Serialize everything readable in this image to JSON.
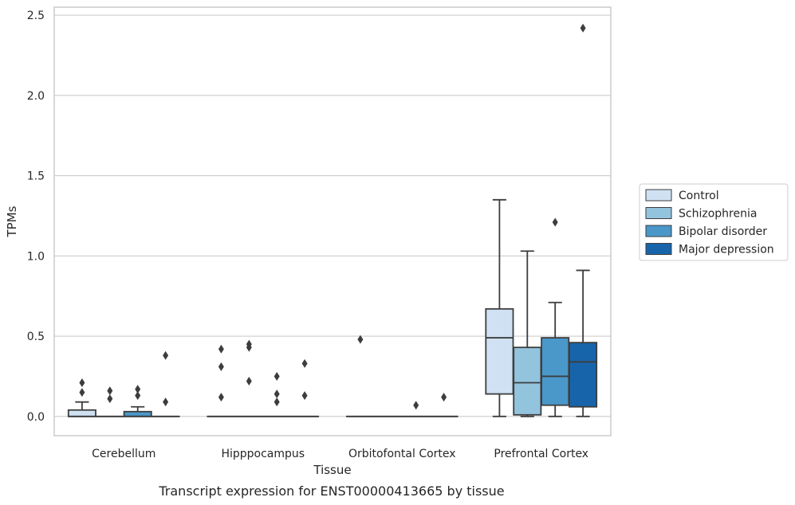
{
  "chart_data": {
    "type": "box",
    "xlabel": "Tissue",
    "ylabel": "TPMs",
    "caption": "Transcript expression for ENST00000413665 by tissue",
    "categories": [
      "Cerebellum",
      "Hipppocampus",
      "Orbitofontal Cortex",
      "Prefrontal Cortex"
    ],
    "ylim": [
      -0.12,
      2.55
    ],
    "yticks": [
      0.0,
      0.5,
      1.0,
      1.5,
      2.0,
      2.5
    ],
    "ytick_labels": [
      "0.0",
      "0.5",
      "1.0",
      "1.5",
      "2.0",
      "2.5"
    ],
    "grid": "horizontal",
    "legend_position": "right",
    "series": [
      {
        "name": "Control",
        "color": "#cfe1f2",
        "boxes": [
          {
            "q1": 0.0,
            "median": 0.0,
            "q3": 0.04,
            "whisker_low": 0.0,
            "whisker_high": 0.09,
            "outliers": [
              0.15,
              0.21
            ]
          },
          {
            "q1": 0.0,
            "median": 0.0,
            "q3": 0.0,
            "whisker_low": 0.0,
            "whisker_high": 0.0,
            "outliers": [
              0.12,
              0.31,
              0.42
            ]
          },
          {
            "q1": 0.0,
            "median": 0.0,
            "q3": 0.0,
            "whisker_low": 0.0,
            "whisker_high": 0.0,
            "outliers": [
              0.48
            ]
          },
          {
            "q1": 0.14,
            "median": 0.49,
            "q3": 0.67,
            "whisker_low": 0.0,
            "whisker_high": 1.35,
            "outliers": []
          }
        ]
      },
      {
        "name": "Schizophrenia",
        "color": "#93c4de",
        "boxes": [
          {
            "q1": 0.0,
            "median": 0.0,
            "q3": 0.0,
            "whisker_low": 0.0,
            "whisker_high": 0.0,
            "outliers": [
              0.11,
              0.16
            ]
          },
          {
            "q1": 0.0,
            "median": 0.0,
            "q3": 0.0,
            "whisker_low": 0.0,
            "whisker_high": 0.0,
            "outliers": [
              0.22,
              0.43,
              0.45
            ]
          },
          {
            "q1": 0.0,
            "median": 0.0,
            "q3": 0.0,
            "whisker_low": 0.0,
            "whisker_high": 0.0,
            "outliers": []
          },
          {
            "q1": 0.01,
            "median": 0.21,
            "q3": 0.43,
            "whisker_low": 0.0,
            "whisker_high": 1.03,
            "outliers": []
          }
        ]
      },
      {
        "name": "Bipolar disorder",
        "color": "#4a98c9",
        "boxes": [
          {
            "q1": 0.0,
            "median": 0.0,
            "q3": 0.03,
            "whisker_low": 0.0,
            "whisker_high": 0.06,
            "outliers": [
              0.13,
              0.17
            ]
          },
          {
            "q1": 0.0,
            "median": 0.0,
            "q3": 0.0,
            "whisker_low": 0.0,
            "whisker_high": 0.0,
            "outliers": [
              0.09,
              0.14,
              0.25
            ]
          },
          {
            "q1": 0.0,
            "median": 0.0,
            "q3": 0.0,
            "whisker_low": 0.0,
            "whisker_high": 0.0,
            "outliers": [
              0.07
            ]
          },
          {
            "q1": 0.07,
            "median": 0.25,
            "q3": 0.49,
            "whisker_low": 0.0,
            "whisker_high": 0.71,
            "outliers": [
              1.21
            ]
          }
        ]
      },
      {
        "name": "Major depression",
        "color": "#1764ab",
        "boxes": [
          {
            "q1": 0.0,
            "median": 0.0,
            "q3": 0.0,
            "whisker_low": 0.0,
            "whisker_high": 0.0,
            "outliers": [
              0.09,
              0.38
            ]
          },
          {
            "q1": 0.0,
            "median": 0.0,
            "q3": 0.0,
            "whisker_low": 0.0,
            "whisker_high": 0.0,
            "outliers": [
              0.13,
              0.33
            ]
          },
          {
            "q1": 0.0,
            "median": 0.0,
            "q3": 0.0,
            "whisker_low": 0.0,
            "whisker_high": 0.0,
            "outliers": [
              0.12
            ]
          },
          {
            "q1": 0.06,
            "median": 0.34,
            "q3": 0.46,
            "whisker_low": 0.0,
            "whisker_high": 0.91,
            "outliers": [
              2.42
            ]
          }
        ]
      }
    ]
  }
}
